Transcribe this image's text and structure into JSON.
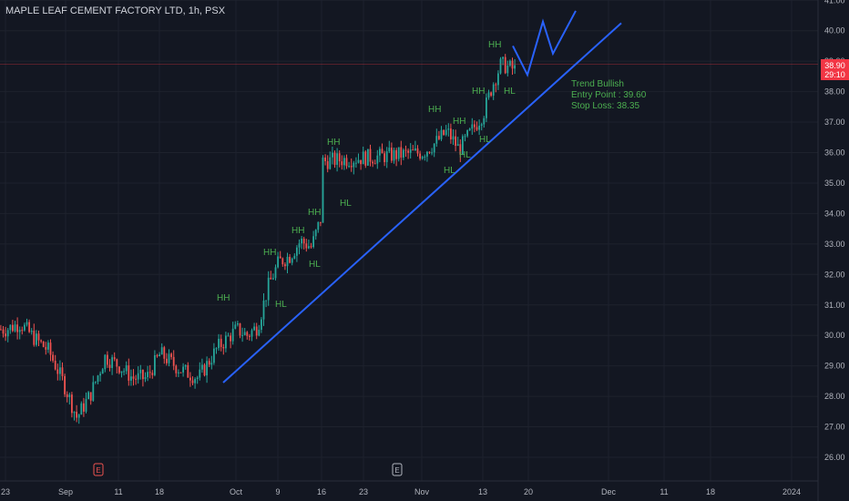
{
  "header": {
    "symbol_title": "MAPLE LEAF CEMENT FACTORY LTD, 1h, PSX"
  },
  "price_badge": {
    "price": "38.90",
    "countdown": "29:10"
  },
  "annotations": {
    "trend": "Trend Bullish",
    "entry": "Entry Point : 39.60",
    "stop": "Stop Loss: 38.35"
  },
  "event_markers": [
    "E",
    "E"
  ],
  "colors": {
    "background": "#131722",
    "up": "#26a69a",
    "down": "#ef5350",
    "trendline": "#2962ff",
    "label": "#4caf50",
    "badge": "#f23645"
  },
  "chart_data": {
    "type": "candlestick",
    "title": "MAPLE LEAF CEMENT FACTORY LTD, 1h, PSX",
    "grid": true,
    "y_axis": {
      "position": "right",
      "ylim": [
        25.5,
        41.2
      ],
      "ticks": [
        "26.00",
        "27.00",
        "28.00",
        "29.00",
        "30.00",
        "31.00",
        "32.00",
        "33.00",
        "34.00",
        "35.00",
        "36.00",
        "37.00",
        "38.00",
        "39.00",
        "40.00",
        "41.00"
      ]
    },
    "x_axis": {
      "ticks": [
        "23",
        "Sep",
        "11",
        "18",
        "Oct",
        "9",
        "16",
        "23",
        "Nov",
        "13",
        "20",
        "Dec",
        "11",
        "18",
        "2024"
      ]
    },
    "close_path": [
      [
        "23",
        30.2
      ],
      [
        "",
        30.4
      ],
      [
        "",
        29.9
      ],
      [
        "",
        29.5
      ],
      [
        "",
        28.5
      ],
      [
        "",
        27.3
      ],
      [
        "",
        28.1
      ],
      [
        "",
        29.3
      ],
      [
        "11",
        29.0
      ],
      [
        "",
        28.6
      ],
      [
        "",
        28.6
      ],
      [
        "18",
        29.4
      ],
      [
        "",
        28.9
      ],
      [
        "",
        28.6
      ],
      [
        "",
        29.6
      ],
      [
        "Oct",
        30.2
      ],
      [
        "",
        30.0
      ],
      [
        "",
        30.3
      ],
      [
        "",
        31.6
      ],
      [
        "9",
        32.4
      ],
      [
        "",
        32.6
      ],
      [
        "",
        33.1
      ],
      [
        "",
        32.9
      ],
      [
        "16",
        34.0
      ],
      [
        "",
        35.8
      ],
      [
        "",
        35.0
      ],
      [
        "",
        34.8
      ],
      [
        "23",
        35.2
      ],
      [
        "",
        35.1
      ],
      [
        "",
        35.6
      ],
      [
        "Nov",
        36.0
      ],
      [
        "",
        36.3
      ],
      [
        "",
        36.7
      ],
      [
        "",
        36.1
      ],
      [
        "",
        36.7
      ],
      [
        "13",
        37.3
      ],
      [
        "",
        38.2
      ],
      [
        "",
        38.9
      ],
      [
        "",
        38.7
      ]
    ],
    "labels": [
      {
        "text": "HH",
        "value": 31.2
      },
      {
        "text": "HH",
        "value": 32.7
      },
      {
        "text": "HL",
        "value": 31.0
      },
      {
        "text": "HH",
        "value": 33.4
      },
      {
        "text": "HH",
        "value": 34.0
      },
      {
        "text": "HL",
        "value": 32.3
      },
      {
        "text": "HH",
        "value": 36.3
      },
      {
        "text": "HL",
        "value": 34.3
      },
      {
        "text": "HH",
        "value": 37.4
      },
      {
        "text": "HH",
        "value": 37.0
      },
      {
        "text": "HL",
        "value": 35.4
      },
      {
        "text": "HL",
        "value": 35.9
      },
      {
        "text": "HL",
        "value": 36.4
      },
      {
        "text": "HH",
        "value": 38.0
      },
      {
        "text": "HH",
        "value": 39.5
      },
      {
        "text": "HL",
        "value": 38.0
      }
    ],
    "trendline": {
      "from": [
        "Oct",
        28.45
      ],
      "to": [
        "Dec",
        40.25
      ]
    },
    "projection": [
      38.9,
      39.5,
      38.55,
      40.3,
      39.25,
      40.65
    ],
    "current_price": 38.9
  }
}
